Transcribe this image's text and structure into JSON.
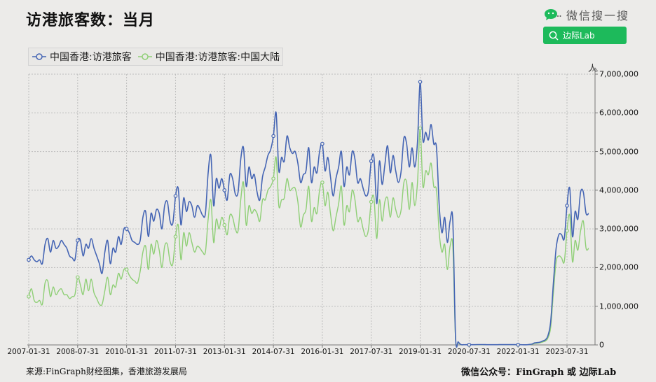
{
  "header": {
    "title": "访港旅客数：当月",
    "wechat_brand": "微信搜一搜",
    "search_label": "边际Lab"
  },
  "footer": {
    "source": "来源:FinGraph财经图集，香港旅游发展局",
    "wechat_id": "微信公众号：FinGraph  或  边际Lab"
  },
  "colors": {
    "background": "#ecebe9",
    "series_total": "#4565b4",
    "series_mainland": "#8fcf76",
    "search_button": "#1dba5b",
    "grid": "#bdbdbd"
  },
  "chart_data": {
    "type": "line",
    "title": "访港旅客数：当月",
    "xlabel": "",
    "ylabel": "人",
    "ylim": [
      0,
      7000000
    ],
    "y_axis_position": "right",
    "grid": true,
    "legend_position": "top-left",
    "yticks": [
      "0",
      "1,000,000",
      "2,000,000",
      "3,000,000",
      "4,000,000",
      "5,000,000",
      "6,000,000",
      "7,000,000"
    ],
    "xticks": [
      "2007-01-31",
      "2008-07-31",
      "2010-01-31",
      "2011-07-31",
      "2013-01-31",
      "2014-07-31",
      "2016-01-31",
      "2017-07-31",
      "2019-01-31",
      "2020-07-31",
      "2022-01-31",
      "2023-07-31"
    ],
    "x_start": "2007-01-31",
    "x_frequency": "monthly",
    "x_end": "2024-03-31",
    "series": [
      {
        "name": "中国香港:访港旅客",
        "color": "#4565b4",
        "values": [
          2200000,
          2300000,
          2200000,
          2150000,
          2200000,
          2100000,
          2600000,
          2750000,
          2400000,
          2700000,
          2500000,
          2550000,
          2700000,
          2600000,
          2500000,
          2300000,
          2250000,
          2200000,
          2700000,
          2700000,
          2300000,
          2600000,
          2500000,
          2750000,
          2500000,
          2300000,
          2100000,
          1850000,
          2400000,
          2700000,
          2100000,
          2500000,
          2400000,
          2800000,
          2600000,
          3000000,
          3000000,
          2900000,
          2700000,
          2650000,
          2600000,
          2700000,
          3300000,
          3450000,
          2800000,
          3400000,
          3200000,
          3500000,
          3400000,
          3000000,
          3600000,
          3700000,
          3200000,
          3150000,
          3850000,
          4050000,
          3100000,
          3800000,
          3450000,
          3700000,
          3600000,
          3300000,
          3600000,
          3500000,
          3350000,
          3400000,
          4450000,
          4900000,
          3600000,
          4300000,
          4050000,
          4300000,
          4000000,
          3750000,
          4400000,
          4300000,
          3900000,
          3950000,
          4800000,
          5100000,
          4100000,
          4600000,
          4300000,
          4400000,
          3950000,
          3750000,
          4350000,
          4600000,
          4900000,
          5050000,
          5400000,
          6000000,
          4500000,
          4850000,
          4750000,
          5400000,
          5100000,
          4950000,
          5000000,
          4700000,
          4200000,
          4400000,
          4500000,
          5100000,
          4200000,
          4600000,
          4450000,
          5000000,
          5200000,
          4500000,
          4850000,
          4350000,
          3850000,
          4300000,
          4600000,
          5000000,
          4100000,
          4600000,
          4400000,
          5000000,
          4800000,
          4200000,
          4300000,
          4050000,
          3850000,
          4000000,
          4750000,
          4850000,
          3650000,
          4750000,
          4150000,
          4650000,
          5150000,
          4450000,
          4900000,
          4500000,
          4200000,
          4500000,
          5350000,
          5200000,
          4600000,
          5100000,
          4600000,
          5250000,
          6800000,
          5300000,
          5500000,
          5300000,
          5700000,
          5200000,
          5100000,
          3600000,
          2900000,
          3300000,
          2650000,
          3200000,
          3200000,
          200000,
          80000,
          10000,
          5000,
          6000,
          5000,
          5000,
          6000,
          9000,
          9000,
          9000,
          7000,
          6000,
          6000,
          6000,
          6000,
          7000,
          7000,
          7000,
          7000,
          8000,
          8000,
          8000,
          5000,
          5000,
          4000,
          4000,
          10000,
          20000,
          50000,
          60000,
          70000,
          100000,
          130000,
          240000,
          600000,
          1600000,
          2500000,
          2850000,
          2850000,
          2750000,
          3600000,
          4050000,
          2800000,
          3450000,
          3250000,
          3950000,
          3950000,
          3400000,
          3400000
        ]
      },
      {
        "name": "中国香港:访港旅客:中国大陆",
        "color": "#8fcf76",
        "values": [
          1250000,
          1450000,
          1150000,
          1100000,
          1150000,
          1050000,
          1600000,
          1650000,
          1250000,
          1500000,
          1300000,
          1400000,
          1450000,
          1300000,
          1300000,
          1200000,
          1250000,
          1300000,
          1750000,
          1550000,
          1300000,
          1700000,
          1400000,
          1700000,
          1350000,
          1200000,
          1050000,
          1050000,
          1400000,
          1750000,
          1300000,
          1550000,
          1500000,
          1850000,
          1700000,
          1950000,
          1950000,
          1800000,
          1700000,
          1650000,
          1600000,
          1900000,
          2400000,
          2550000,
          1950000,
          2600000,
          2350000,
          2700000,
          2450000,
          2000000,
          2550000,
          2600000,
          2150000,
          2100000,
          2800000,
          3100000,
          2200000,
          2900000,
          2550000,
          2900000,
          2650000,
          2400000,
          2550000,
          2500000,
          2400000,
          2400000,
          3250000,
          3750000,
          2650000,
          3250000,
          3000000,
          3300000,
          3100000,
          2850000,
          3350000,
          3300000,
          3000000,
          2950000,
          3750000,
          4200000,
          3100000,
          3600000,
          3400000,
          3500000,
          3400000,
          3200000,
          3750000,
          3750000,
          4000000,
          4100000,
          4300000,
          4850000,
          3600000,
          3750000,
          3800000,
          4300000,
          4000000,
          4050000,
          4050000,
          3700000,
          3050000,
          3350000,
          3500000,
          4100000,
          3200000,
          3550000,
          3400000,
          4000000,
          4200000,
          3600000,
          3950000,
          3400000,
          2950000,
          3300000,
          3650000,
          4100000,
          3100000,
          3600000,
          3450000,
          4000000,
          3750000,
          3200000,
          3300000,
          3000000,
          2800000,
          3000000,
          3700000,
          3800000,
          2750000,
          3750000,
          3200000,
          3700000,
          3800000,
          3300000,
          3800000,
          3500000,
          3300000,
          3500000,
          4200000,
          4200000,
          3500000,
          4200000,
          3600000,
          4200000,
          5600000,
          4100000,
          4500000,
          4400000,
          4700000,
          4100000,
          4000000,
          2900000,
          2400000,
          2600000,
          1950000,
          2550000,
          2550000,
          150000,
          60000,
          5000,
          3000,
          4000,
          3000,
          3000,
          4000,
          6000,
          6000,
          6000,
          5000,
          4000,
          4000,
          4000,
          4000,
          5000,
          5000,
          5000,
          5000,
          6000,
          6000,
          6000,
          4000,
          4000,
          3000,
          3000,
          7000,
          15000,
          35000,
          45000,
          55000,
          75000,
          100000,
          180000,
          450000,
          1350000,
          2150000,
          2300000,
          2250000,
          2150000,
          2950000,
          3350000,
          2150000,
          2700000,
          2450000,
          2950000,
          3200000,
          2500000,
          2500000
        ]
      }
    ],
    "marked_points": [
      {
        "series": "中国香港:访港旅客",
        "x": "2019-01-31",
        "y": 6800000
      }
    ]
  }
}
